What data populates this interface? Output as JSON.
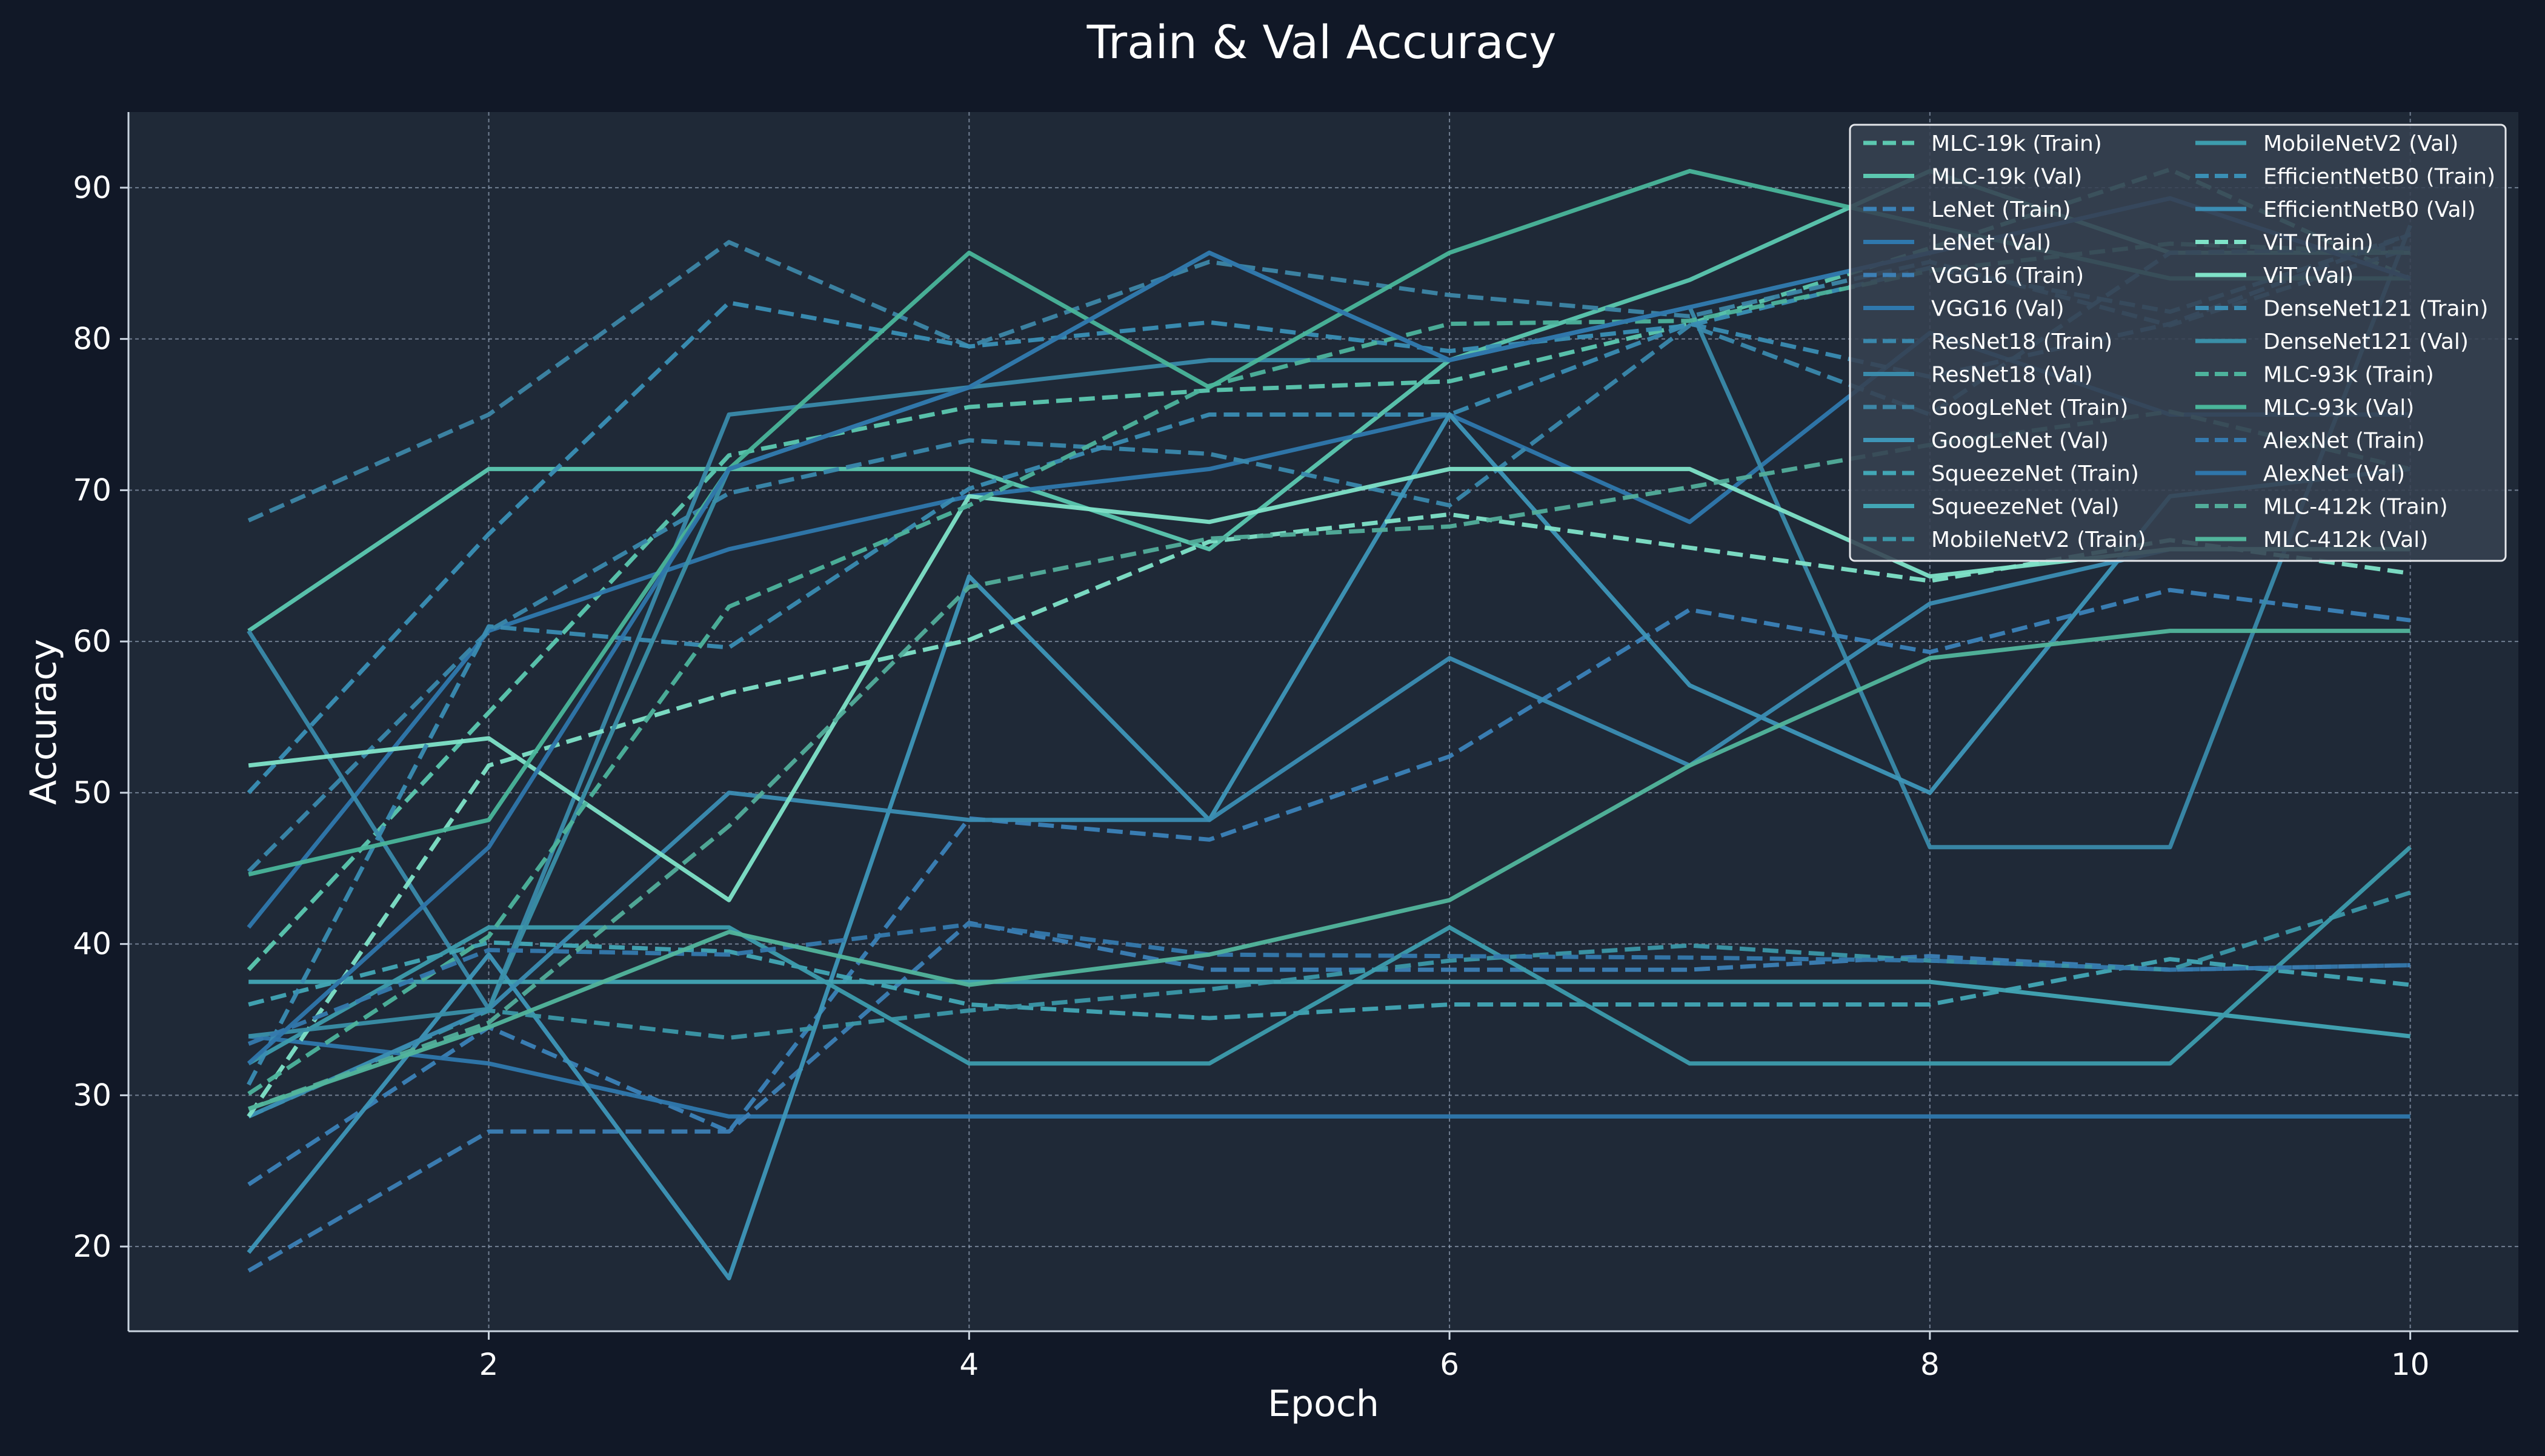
{
  "chart_data": {
    "type": "line",
    "title": "Train & Val Accuracy",
    "xlabel": "Epoch",
    "ylabel": "Accuracy",
    "xlim": [
      0.5,
      10.45
    ],
    "ylim": [
      14.4,
      95
    ],
    "xticks": [
      2,
      4,
      6,
      8,
      10
    ],
    "yticks": [
      20,
      30,
      40,
      50,
      60,
      70,
      80,
      90
    ],
    "grid": true,
    "legend": "top-right",
    "legend_columns": 2,
    "colors": {
      "background": "#111827",
      "plot_background": "#1f2937",
      "grid": "#94a3b8",
      "text": "#ffffff",
      "axis": "#cbd5e1"
    },
    "x": [
      1,
      2,
      3,
      4,
      5,
      6,
      7,
      8,
      9,
      10
    ],
    "series": [
      {
        "name": "MLC-19k (Train)",
        "style": "dashed",
        "color": "#5cc8b0",
        "values": [
          38.3,
          55.3,
          72.3,
          75.5,
          76.6,
          77.2,
          81.0,
          86.0,
          91.2,
          84.0
        ]
      },
      {
        "name": "MLC-19k (Val)",
        "style": "solid",
        "color": "#5cc8b0",
        "values": [
          60.7,
          71.4,
          71.4,
          71.4,
          66.1,
          78.6,
          83.9,
          91.1,
          85.7,
          85.7
        ]
      },
      {
        "name": "LeNet (Train)",
        "style": "dashed",
        "color": "#3b82b8",
        "values": [
          24.1,
          34.5,
          27.6,
          48.3,
          46.9,
          52.4,
          62.1,
          59.3,
          63.4,
          61.4
        ]
      },
      {
        "name": "LeNet (Val)",
        "style": "solid",
        "color": "#2f78ad",
        "values": [
          33.9,
          32.1,
          28.6,
          28.6,
          28.6,
          28.6,
          28.6,
          28.6,
          28.6,
          28.6
        ]
      },
      {
        "name": "VGG16 (Train)",
        "style": "dashed",
        "color": "#3c7fb5",
        "values": [
          18.4,
          27.6,
          27.6,
          41.4,
          38.3,
          38.3,
          38.3,
          39.2,
          38.3,
          38.6
        ]
      },
      {
        "name": "VGG16 (Val)",
        "style": "solid",
        "color": "#2f78ad",
        "values": [
          41.1,
          60.7,
          66.1,
          69.6,
          71.4,
          75.0,
          67.9,
          80.4,
          75.0,
          75.0
        ]
      },
      {
        "name": "ResNet18 (Train)",
        "style": "dashed",
        "color": "#3a88ac",
        "values": [
          44.8,
          60.7,
          69.8,
          73.3,
          72.4,
          69.0,
          80.9,
          75.0,
          85.7,
          86.0
        ]
      },
      {
        "name": "ResNet18 (Val)",
        "style": "solid",
        "color": "#3a8aaa",
        "values": [
          60.7,
          35.7,
          75.0,
          76.8,
          78.6,
          78.6,
          82.1,
          46.4,
          46.4,
          87.5
        ]
      },
      {
        "name": "GoogLeNet (Train)",
        "style": "dashed",
        "color": "#3d86a6",
        "values": [
          68.0,
          75.0,
          86.4,
          79.5,
          85.1,
          82.9,
          81.5,
          85.1,
          80.9,
          86.0
        ]
      },
      {
        "name": "GoogLeNet (Val)",
        "style": "solid",
        "color": "#3e96b8",
        "values": [
          19.6,
          39.3,
          17.9,
          64.3,
          48.2,
          75.0,
          57.1,
          50.0,
          69.6,
          71.4
        ]
      },
      {
        "name": "SqueezeNet (Train)",
        "style": "dashed",
        "color": "#42a6b5",
        "values": [
          36.0,
          40.1,
          39.5,
          36.0,
          35.1,
          36.0,
          36.0,
          36.0,
          39.0,
          37.3
        ]
      },
      {
        "name": "SqueezeNet (Val)",
        "style": "solid",
        "color": "#42a6b5",
        "values": [
          37.5,
          37.5,
          37.5,
          37.5,
          37.5,
          37.5,
          37.5,
          37.5,
          35.7,
          33.9
        ]
      },
      {
        "name": "MobileNetV2 (Train)",
        "style": "dashed",
        "color": "#3b97a8",
        "values": [
          28.6,
          35.6,
          33.8,
          35.6,
          37.0,
          38.9,
          39.9,
          38.9,
          38.3,
          43.4
        ]
      },
      {
        "name": "MobileNetV2 (Val)",
        "style": "solid",
        "color": "#3d9cad",
        "values": [
          32.1,
          41.1,
          41.1,
          32.1,
          32.1,
          41.1,
          32.1,
          32.1,
          32.1,
          46.4
        ]
      },
      {
        "name": "EfficientNetB0 (Train)",
        "style": "dashed",
        "color": "#3a8fb5",
        "values": [
          50.0,
          67.1,
          82.4,
          79.5,
          81.1,
          79.2,
          80.9,
          84.7,
          81.8,
          86.9
        ]
      },
      {
        "name": "EfficientNetB0 (Val)",
        "style": "solid",
        "color": "#3b8db3",
        "values": [
          28.6,
          35.7,
          50.0,
          48.2,
          48.2,
          58.9,
          51.8,
          62.5,
          66.1,
          66.1
        ]
      },
      {
        "name": "ViT (Train)",
        "style": "dashed",
        "color": "#7fe3c8",
        "values": [
          28.6,
          51.8,
          56.6,
          60.1,
          66.6,
          68.4,
          66.2,
          64.0,
          66.7,
          64.5
        ]
      },
      {
        "name": "ViT (Val)",
        "style": "solid",
        "color": "#7fe3c8",
        "values": [
          51.8,
          53.6,
          42.9,
          69.6,
          67.9,
          71.4,
          71.4,
          64.3,
          66.1,
          66.1
        ]
      },
      {
        "name": "DenseNet121 (Train)",
        "style": "dashed",
        "color": "#3a8cb2",
        "values": [
          30.7,
          61.0,
          59.6,
          70.1,
          75.0,
          75.0,
          81.0,
          77.5,
          81.0,
          86.9
        ]
      },
      {
        "name": "DenseNet121 (Val)",
        "style": "solid",
        "color": "#3a8fa8",
        "values": [
          33.9,
          35.7,
          71.4,
          76.8,
          85.7,
          78.6,
          82.1,
          85.7,
          89.3,
          84.0
        ]
      },
      {
        "name": "MLC-93k (Train)",
        "style": "dashed",
        "color": "#4db39c",
        "values": [
          30.1,
          40.5,
          62.3,
          69.0,
          76.9,
          81.0,
          81.2,
          84.5,
          86.3,
          85.7
        ]
      },
      {
        "name": "MLC-93k (Val)",
        "style": "solid",
        "color": "#4ab59a",
        "values": [
          44.6,
          48.2,
          71.4,
          85.7,
          76.8,
          85.7,
          91.1,
          87.5,
          84.0,
          84.0
        ]
      },
      {
        "name": "AlexNet (Train)",
        "style": "dashed",
        "color": "#3579ad",
        "values": [
          33.4,
          39.6,
          39.3,
          41.3,
          39.3,
          39.2,
          39.1,
          38.9,
          38.3,
          38.6
        ]
      },
      {
        "name": "AlexNet (Val)",
        "style": "solid",
        "color": "#2f76ab",
        "values": [
          32.1,
          46.4,
          71.4,
          76.8,
          85.7,
          78.6,
          82.1,
          85.7,
          89.3,
          84.0
        ]
      },
      {
        "name": "MLC-412k (Train)",
        "style": "dashed",
        "color": "#52ad9a",
        "values": [
          29.1,
          34.8,
          47.8,
          63.6,
          66.8,
          67.6,
          70.2,
          73.0,
          75.2,
          71.4
        ]
      },
      {
        "name": "MLC-412k (Val)",
        "style": "solid",
        "color": "#52b59c",
        "values": [
          29.1,
          34.5,
          40.8,
          37.3,
          39.3,
          42.9,
          51.8,
          58.9,
          60.7,
          60.7
        ]
      }
    ]
  }
}
